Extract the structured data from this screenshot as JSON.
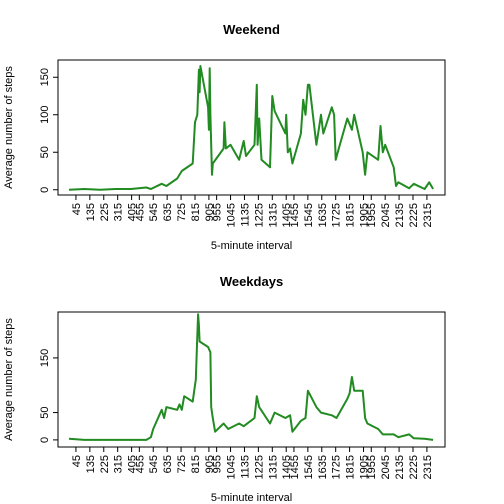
{
  "chart_data": [
    {
      "type": "line",
      "title": "Weekend",
      "x_label": "5-minute interval",
      "y_label": "Average number of steps",
      "color": "#228b22",
      "series": [
        {
          "name": "Weekend",
          "color": "#228b22",
          "x": [
            0,
            100,
            200,
            300,
            400,
            500,
            530,
            600,
            630,
            700,
            730,
            800,
            815,
            830,
            840,
            845,
            850,
            900,
            905,
            910,
            915,
            925,
            930,
            1000,
            1005,
            1015,
            1045,
            1100,
            1130,
            1145,
            1200,
            1215,
            1220,
            1230,
            1245,
            1300,
            1315,
            1330,
            1400,
            1405,
            1415,
            1430,
            1445,
            1500,
            1515,
            1530,
            1545,
            1555,
            1600,
            1630,
            1645,
            1700,
            1715,
            1725,
            1745,
            1800,
            1830,
            1845,
            1900,
            1915,
            1930,
            2000,
            2015,
            2030,
            2045,
            2100,
            2115,
            2130,
            2200,
            2230,
            2300,
            2330,
            2355
          ],
          "values": [
            0,
            1,
            0,
            1,
            1,
            3,
            1,
            8,
            5,
            15,
            25,
            35,
            90,
            100,
            160,
            130,
            165,
            110,
            80,
            162,
            100,
            20,
            35,
            55,
            90,
            55,
            60,
            40,
            65,
            45,
            60,
            140,
            60,
            95,
            40,
            30,
            125,
            105,
            75,
            100,
            50,
            55,
            35,
            75,
            120,
            100,
            140,
            140,
            60,
            100,
            75,
            110,
            100,
            40,
            55,
            95,
            80,
            100,
            50,
            20,
            50,
            40,
            85,
            50,
            60,
            30,
            5,
            10,
            2,
            8,
            1,
            10,
            1
          ]
        }
      ],
      "xlim": [
        -71,
        2432
      ],
      "ylim": [
        -7,
        173
      ],
      "xticks": [
        45,
        135,
        225,
        315,
        405,
        455,
        545,
        635,
        725,
        815,
        905,
        955,
        1045,
        1135,
        1225,
        1315,
        1405,
        1455,
        1545,
        1635,
        1725,
        1815,
        1905,
        1955,
        2045,
        2135,
        2225,
        2315
      ],
      "yticks": [
        0,
        50,
        100,
        150
      ]
    },
    {
      "type": "line",
      "title": "Weekdays",
      "x_label": "5-minute interval",
      "y_label": "Average number of steps",
      "color": "#228b22",
      "series": [
        {
          "name": "Weekdays",
          "color": "#228b22",
          "x": [
            0,
            100,
            200,
            300,
            400,
            500,
            530,
            545,
            600,
            615,
            630,
            700,
            715,
            730,
            745,
            800,
            815,
            820,
            830,
            835,
            840,
            845,
            900,
            915,
            920,
            930,
            945,
            1000,
            1030,
            1100,
            1130,
            1200,
            1215,
            1230,
            1300,
            1330,
            1400,
            1430,
            1445,
            1500,
            1530,
            1545,
            1600,
            1630,
            1700,
            1730,
            1800,
            1815,
            1830,
            1845,
            1900,
            1915,
            1930,
            2000,
            2030,
            2100,
            2130,
            2200,
            2230,
            2300,
            2355
          ],
          "values": [
            2,
            0,
            0,
            0,
            0,
            0,
            5,
            20,
            55,
            40,
            60,
            55,
            65,
            55,
            80,
            70,
            100,
            110,
            190,
            230,
            210,
            180,
            170,
            160,
            60,
            40,
            15,
            30,
            20,
            30,
            25,
            40,
            80,
            60,
            30,
            50,
            40,
            45,
            15,
            35,
            40,
            90,
            60,
            50,
            45,
            40,
            75,
            85,
            115,
            90,
            90,
            40,
            30,
            20,
            10,
            10,
            5,
            10,
            3,
            2,
            0
          ]
        }
      ],
      "xlim": [
        -71,
        2432
      ],
      "ylim": [
        -13,
        234
      ],
      "xticks": [
        45,
        135,
        225,
        315,
        405,
        455,
        545,
        635,
        725,
        815,
        905,
        955,
        1045,
        1135,
        1225,
        1315,
        1405,
        1455,
        1545,
        1635,
        1725,
        1815,
        1905,
        1955,
        2045,
        2135,
        2225,
        2315
      ],
      "yticks": [
        0,
        50,
        150
      ]
    }
  ]
}
